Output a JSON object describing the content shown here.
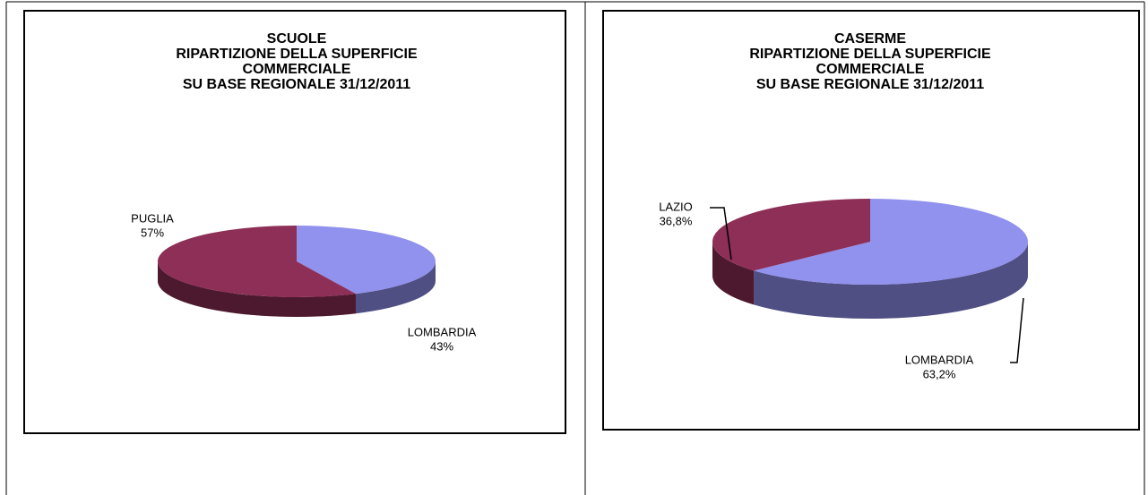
{
  "chart_data": [
    {
      "type": "pie3d",
      "title": [
        "SCUOLE",
        "RIPARTIZIONE DELLA SUPERFICIE",
        "COMMERCIALE",
        "SU BASE REGIONALE 31/12/2011"
      ],
      "categories": [
        "LOMBARDIA",
        "PUGLIA"
      ],
      "values": [
        43,
        57
      ],
      "value_labels": [
        "43%",
        "57%"
      ],
      "colors": [
        "#9191ee",
        "#8d2f57"
      ]
    },
    {
      "type": "pie3d",
      "title": [
        "CASERME",
        "RIPARTIZIONE DELLA SUPERFICIE",
        "COMMERCIALE",
        "SU BASE REGIONALE 31/12/2011"
      ],
      "categories": [
        "LOMBARDIA",
        "LAZIO"
      ],
      "values": [
        63.2,
        36.8
      ],
      "value_labels": [
        "63,2%",
        "36,8%"
      ],
      "colors": [
        "#9191ee",
        "#8d2f57"
      ]
    }
  ]
}
